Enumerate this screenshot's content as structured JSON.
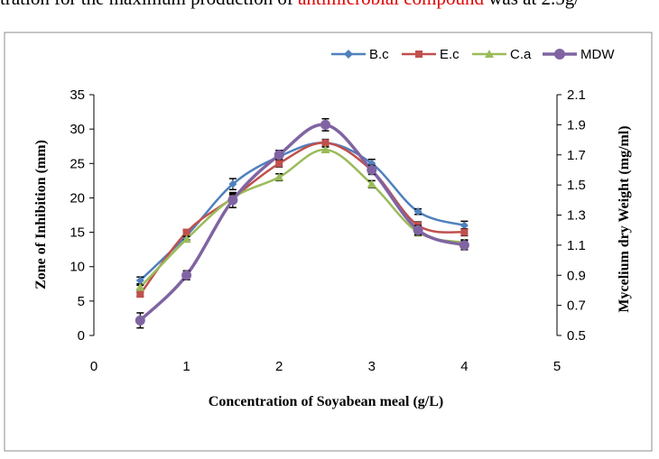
{
  "caption": {
    "part1": "tration for the maximum production of ",
    "highlight": "antimicrobial compound",
    "part2": " was at 2.5g/"
  },
  "chart_data": {
    "type": "line",
    "xlabel": "Concentration of Soyabean meal (g/L)",
    "ylabel_left": "Zone of Inhibition (mm)",
    "ylabel_right": "Mycelium dry Weight (mg/ml)",
    "x_ticks": [
      "0",
      "1",
      "2",
      "3",
      "4",
      "5"
    ],
    "y_left_ticks": [
      "0",
      "5",
      "10",
      "15",
      "20",
      "25",
      "30",
      "35"
    ],
    "y_right_ticks": [
      "0.5",
      "0.7",
      "0.9",
      "1.1",
      "1.3",
      "1.5",
      "1.7",
      "1.9",
      "2.1"
    ],
    "xlim": [
      0,
      5
    ],
    "ylim_left": [
      0,
      35
    ],
    "ylim_right": [
      0.5,
      2.1
    ],
    "x": [
      0.5,
      1,
      1.5,
      2,
      2.5,
      3,
      3.5,
      4
    ],
    "legend_position": "top-right",
    "grid": false,
    "series": [
      {
        "name": "B.c",
        "axis": "left",
        "color": "#4f81bd",
        "marker": "diamond",
        "values": [
          8,
          14.5,
          22,
          26,
          28,
          25,
          18,
          16
        ],
        "errors": [
          0.5,
          0.6,
          0.8,
          0.6,
          0.5,
          0.6,
          0.4,
          0.6
        ]
      },
      {
        "name": "E.c",
        "axis": "left",
        "color": "#c0504d",
        "marker": "square",
        "values": [
          6,
          15,
          20,
          25,
          28,
          24,
          16,
          15
        ],
        "errors": [
          0.3,
          0.4,
          0.6,
          0.5,
          0.4,
          0.4,
          0.5,
          0.5
        ]
      },
      {
        "name": "C.a",
        "axis": "left",
        "color": "#9bbb59",
        "marker": "triangle",
        "values": [
          7,
          14,
          20,
          23,
          27,
          22,
          15,
          13.5
        ],
        "errors": [
          0.3,
          0.4,
          0.5,
          0.5,
          0.4,
          0.5,
          0.5,
          0.4
        ]
      },
      {
        "name": "MDW",
        "axis": "right",
        "color": "#8064a2",
        "marker": "circle",
        "values": [
          0.6,
          0.9,
          1.4,
          1.7,
          1.9,
          1.6,
          1.2,
          1.1
        ],
        "errors": [
          0.05,
          0.03,
          0.05,
          0.03,
          0.04,
          0.03,
          0.03,
          0.03
        ]
      }
    ]
  }
}
